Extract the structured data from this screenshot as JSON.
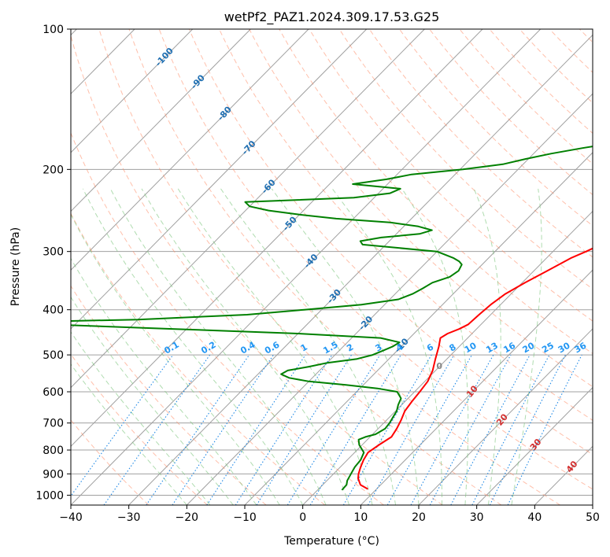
{
  "chart_data": {
    "type": "line",
    "title": "wetPf2_PAZ1.2024.309.17.53.G25",
    "xlabel": "Temperature (°C)",
    "ylabel": "Pressure (hPa)",
    "xlim": [
      -40,
      50
    ],
    "ylim": [
      1050,
      100
    ],
    "y_scale": "log",
    "x_ticks": [
      "−40",
      "−30",
      "−20",
      "−10",
      "0",
      "10",
      "20",
      "30",
      "40",
      "50"
    ],
    "y_ticks": [
      "100",
      "200",
      "300",
      "400",
      "500",
      "600",
      "700",
      "800",
      "900",
      "1000"
    ],
    "grid": true,
    "colors": {
      "temperature": "#ff0000",
      "dewpoint": "#008000",
      "isotherm": "#a0a0a0",
      "dry_adiabat": "#ff8a65",
      "moist_adiabat": "#7cc47c",
      "mixing_ratio": "#1e88e5",
      "isotherm_label": "#1f6fb2",
      "mixing_label": "#2196f3",
      "dry_label": "#d32f2f",
      "moist_label": "#888888"
    },
    "isotherm_labels": [
      "-100",
      "-90",
      "-80",
      "-70",
      "-60",
      "-50",
      "-40",
      "-30",
      "-20",
      "-10"
    ],
    "dry_adiabat_labels": [
      "10",
      "20",
      "30",
      "40"
    ],
    "moist_adiabat_labels": [
      "0"
    ],
    "mixing_ratio_labels": [
      "0.1",
      "0.2",
      "0.4",
      "0.6",
      "1",
      "1.5",
      "2",
      "3",
      "4",
      "6",
      "8",
      "10",
      "13",
      "16",
      "20",
      "25",
      "30",
      "36"
    ],
    "series": [
      {
        "key": "temperature",
        "pressure": [
          970,
          950,
          920,
          900,
          870,
          840,
          810,
          780,
          750,
          720,
          690,
          660,
          630,
          600,
          570,
          540,
          510,
          480,
          460,
          450,
          440,
          430,
          410,
          390,
          370,
          350,
          330,
          310,
          300,
          280,
          260,
          250,
          230,
          210,
          200,
          180,
          170,
          160,
          150,
          140,
          130,
          125,
          120,
          115,
          110,
          105,
          100
        ],
        "values": [
          8.5,
          6.5,
          5.0,
          4.3,
          3.5,
          2.8,
          2.3,
          2.9,
          3.7,
          3.2,
          2.5,
          1.6,
          1.2,
          0.9,
          0.5,
          -0.5,
          -2.0,
          -3.5,
          -4.7,
          -4.2,
          -3.0,
          -2.2,
          -2.0,
          -1.7,
          -1.0,
          0.5,
          2.3,
          4.2,
          5.7,
          8.5,
          11.6,
          12.7,
          14.9,
          16.8,
          17.9,
          19.2,
          19.7,
          20.5,
          22.0,
          22.6,
          23.4,
          22.9,
          23.1,
          24.1,
          25.5,
          27.5,
          28.0
        ]
      },
      {
        "key": "dewpoint",
        "pressure": [
          975,
          950,
          930,
          900,
          870,
          840,
          810,
          780,
          760,
          750,
          740,
          720,
          700,
          680,
          660,
          640,
          620,
          600,
          590,
          580,
          570,
          560,
          550,
          540,
          530,
          520,
          510,
          500,
          490,
          480,
          470,
          460,
          450,
          440,
          430,
          425,
          420,
          410,
          400,
          390,
          380,
          370,
          360,
          350,
          340,
          330,
          320,
          315,
          310,
          300,
          295,
          290,
          285,
          280,
          275,
          270,
          265,
          260,
          255,
          250,
          245,
          240,
          235,
          230,
          225,
          220,
          215,
          210,
          205,
          200,
          195,
          190,
          185,
          180,
          175,
          170,
          165,
          160,
          155,
          150,
          145,
          140,
          135,
          130,
          125,
          120,
          115,
          110,
          105,
          100
        ],
        "values": [
          4.2,
          4.1,
          3.5,
          3.0,
          2.5,
          2.3,
          1.6,
          -0.5,
          -1.5,
          -0.8,
          0.5,
          1.2,
          1.0,
          0.6,
          0.2,
          -0.6,
          -1.2,
          -3.0,
          -7.0,
          -13.0,
          -20.0,
          -24.0,
          -26.0,
          -25.5,
          -22.5,
          -20.0,
          -15.5,
          -13.5,
          -12.5,
          -11.5,
          -11.0,
          -15.0,
          -30.0,
          -52.0,
          -75.0,
          -80.0,
          -60.0,
          -42.0,
          -33.0,
          -24.0,
          -18.5,
          -17.0,
          -16.2,
          -15.5,
          -13.5,
          -13.0,
          -13.5,
          -14.5,
          -16.0,
          -20.0,
          -27.0,
          -34.0,
          -35.0,
          -32.0,
          -26.0,
          -24.5,
          -27.5,
          -33.0,
          -43.0,
          -50.0,
          -56.0,
          -60.0,
          -61.5,
          -43.5,
          -38.0,
          -37.0,
          -46.0,
          -41.0,
          -37.5,
          -29.5,
          -23.5,
          -20.5,
          -17.0,
          -12.5,
          -7.5,
          -4.5,
          -2.0,
          -0.5,
          -2.0,
          -8.0,
          -12.0,
          -11.0,
          -5.5,
          -2.5,
          -0.5,
          0.5,
          1.0,
          3.0,
          7.0,
          8.0
        ]
      }
    ]
  }
}
